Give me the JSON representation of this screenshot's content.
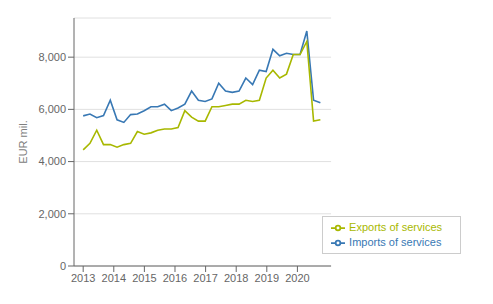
{
  "chart_data": {
    "type": "line",
    "ylabel": "EUR mil.",
    "x": [
      2013,
      2013.2214285714285,
      2013.4428571428573,
      2013.6642857142856,
      2013.8857142857144,
      2014.107142857143,
      2014.3285714285714,
      2014.55,
      2014.7714285714285,
      2014.9928571428572,
      2015.2142857142858,
      2015.4357142857143,
      2015.6571428571428,
      2015.8785714285714,
      2016.1,
      2016.3214285714287,
      2016.5428571428572,
      2016.7642857142857,
      2016.9857142857143,
      2017.2071428571428,
      2017.4285714285713,
      2017.65,
      2017.8714285714286,
      2018.0928571428572,
      2018.3142857142857,
      2018.5357142857142,
      2018.757142857143,
      2018.9785714285715,
      2019.2,
      2019.4214285714286,
      2019.642857142857,
      2019.8642857142856,
      2020.0857142857142,
      2020.3071428571427,
      2020.5285714285715,
      2020.75
    ],
    "series": [
      {
        "name": "Imports of services",
        "color": "#3878b4",
        "values": [
          5750,
          5820,
          5680,
          5760,
          6350,
          5600,
          5500,
          5800,
          5820,
          5950,
          6100,
          6100,
          6200,
          5950,
          6050,
          6200,
          6700,
          6350,
          6300,
          6400,
          7000,
          6700,
          6650,
          6700,
          7200,
          6950,
          7500,
          7450,
          8300,
          8050,
          8150,
          8100,
          8100,
          9000,
          6350,
          6250
        ]
      },
      {
        "name": "Exports of services",
        "color": "#a8b800",
        "values": [
          4450,
          4700,
          5200,
          4650,
          4650,
          4550,
          4650,
          4700,
          5150,
          5050,
          5100,
          5200,
          5250,
          5250,
          5300,
          5950,
          5700,
          5550,
          5550,
          6100,
          6100,
          6150,
          6200,
          6200,
          6350,
          6300,
          6350,
          7200,
          7500,
          7200,
          7350,
          8100,
          8100,
          8600,
          5550,
          5600
        ]
      }
    ],
    "xlim": [
      2012.7,
      2021.1
    ],
    "xticks": [
      2013,
      2014,
      2015,
      2016,
      2017,
      2018,
      2019,
      2020
    ],
    "ylim": [
      0,
      9500
    ],
    "yticks": [
      0,
      {
        "value": 2000,
        "label": "2,000"
      },
      {
        "value": 4000,
        "label": "4,000"
      },
      {
        "value": 6000,
        "label": "6,000"
      },
      {
        "value": 8000,
        "label": "8,000"
      }
    ],
    "grid": true,
    "legend": "lower right"
  }
}
